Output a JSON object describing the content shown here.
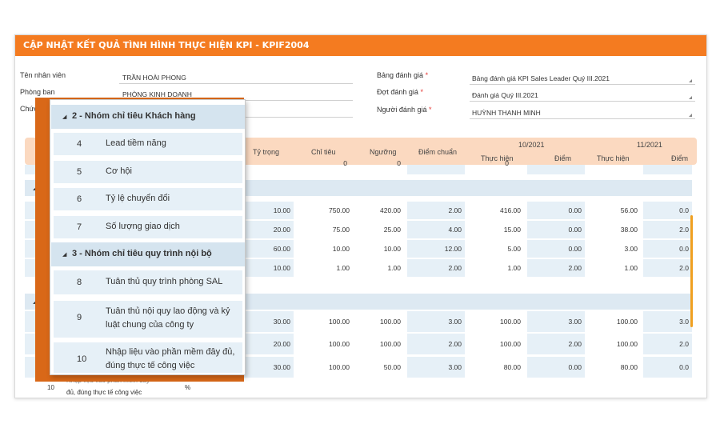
{
  "title": "CẬP NHẬT KẾT QUẢ TÌNH HÌNH THỰC HIỆN KPI - KPIF2004",
  "form": {
    "employee_label": "Tên nhân viên",
    "employee_value": "TRẦN HOÀI PHONG",
    "department_label": "Phòng ban",
    "department_value": "PHÒNG KINH DOANH",
    "position_label": "Chức",
    "position_value": "",
    "scorecard_label": "Bảng đánh giá",
    "scorecard_value": "Bảng đánh giá KPI Sales Leader Quý III.2021",
    "period_label": "Đợt đánh giá",
    "period_value": "Đánh giá Quý III.2021",
    "evaluator_label": "Người đánh giá",
    "evaluator_value": "HUỲNH THANH MINH",
    "required_mark": "*"
  },
  "table": {
    "headers": {
      "weight": "Tỷ trọng",
      "target": "Chỉ tiêu",
      "threshold": "Ngưỡng",
      "standard": "Điểm chuẩn",
      "month1": "10/2021",
      "month2": "11/2021",
      "actual": "Thực hiện",
      "score": "Điểm"
    },
    "partial_top": [
      "0",
      "0",
      "0"
    ],
    "rows": [
      {
        "weight": "10.00",
        "target": "750.00",
        "threshold": "420.00",
        "standard": "2.00",
        "a1": "416.00",
        "s1": "0.00",
        "a2": "56.00",
        "s2": "0.0"
      },
      {
        "weight": "20.00",
        "target": "75.00",
        "threshold": "25.00",
        "standard": "4.00",
        "a1": "15.00",
        "s1": "0.00",
        "a2": "38.00",
        "s2": "2.0"
      },
      {
        "weight": "60.00",
        "target": "10.00",
        "threshold": "10.00",
        "standard": "12.00",
        "a1": "5.00",
        "s1": "0.00",
        "a2": "3.00",
        "s2": "0.0"
      },
      {
        "weight": "10.00",
        "target": "1.00",
        "threshold": "1.00",
        "standard": "2.00",
        "a1": "1.00",
        "s1": "2.00",
        "a2": "1.00",
        "s2": "2.0"
      },
      {
        "weight": "30.00",
        "target": "100.00",
        "threshold": "100.00",
        "standard": "3.00",
        "a1": "100.00",
        "s1": "3.00",
        "a2": "100.00",
        "s2": "3.0"
      },
      {
        "weight": "20.00",
        "target": "100.00",
        "threshold": "100.00",
        "standard": "2.00",
        "a1": "100.00",
        "s1": "2.00",
        "a2": "100.00",
        "s2": "2.0"
      },
      {
        "weight": "30.00",
        "target": "100.00",
        "threshold": "50.00",
        "standard": "3.00",
        "a1": "80.00",
        "s1": "0.00",
        "a2": "80.00",
        "s2": "0.0"
      }
    ],
    "bottom_row": {
      "num": "10",
      "line1": "Nhập liệu vào phần mềm đây",
      "line2": "đủ, đúng thực tế công việc",
      "unit": "%"
    }
  },
  "popup": {
    "group2": "2 - Nhóm chỉ tiêu Khách hàng",
    "group3": "3 - Nhóm chỉ tiêu quy trình nội bộ",
    "items": [
      {
        "num": "4",
        "text": "Lead tiềm năng"
      },
      {
        "num": "5",
        "text": "Cơ hội"
      },
      {
        "num": "6",
        "text": "Tỷ lệ chuyển đổi"
      },
      {
        "num": "7",
        "text": "Số lượng giao dịch"
      },
      {
        "num": "8",
        "text": "Tuân thủ quy trình phòng SAL"
      },
      {
        "num": "9",
        "text": "Tuân thủ nội quy lao động và kỷ luật chung của công ty"
      },
      {
        "num": "10",
        "text": "Nhập liệu vào phần mềm đây đủ, đúng thực tế công việc"
      }
    ]
  },
  "colors": {
    "accent": "#f47b20",
    "header_bg": "#fbd9c0",
    "cell_blue": "#e6f0f7",
    "group_bg": "#dde9f2"
  }
}
